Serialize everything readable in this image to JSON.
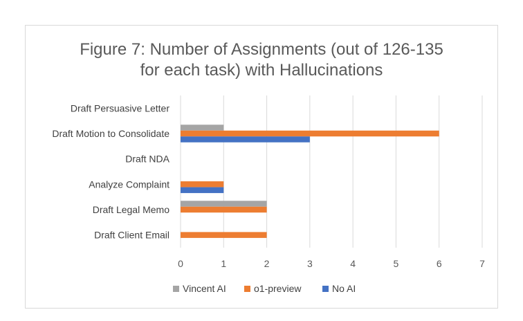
{
  "chart_data": {
    "type": "bar",
    "orientation": "horizontal",
    "title_lines": [
      "Figure 7: Number of Assignments (out of 126-135",
      "for each task) with Hallucinations"
    ],
    "categories": [
      "Draft Persuasive Letter",
      "Draft Motion to Consolidate",
      "Draft NDA",
      "Analyze Complaint",
      "Draft Legal Memo",
      "Draft Client Email"
    ],
    "series": [
      {
        "name": "Vincent AI",
        "color": "#a5a5a5",
        "values": [
          0,
          1,
          0,
          0,
          2,
          0
        ]
      },
      {
        "name": "o1-preview",
        "color": "#ed7d31",
        "values": [
          0,
          6,
          0,
          1,
          2,
          2
        ]
      },
      {
        "name": "No AI",
        "color": "#4472c4",
        "values": [
          0,
          3,
          0,
          1,
          0,
          0
        ]
      }
    ],
    "xlim": [
      0,
      7
    ],
    "xticks": [
      "0",
      "1",
      "2",
      "3",
      "4",
      "5",
      "6",
      "7"
    ],
    "grid": true,
    "legend_position": "bottom"
  }
}
